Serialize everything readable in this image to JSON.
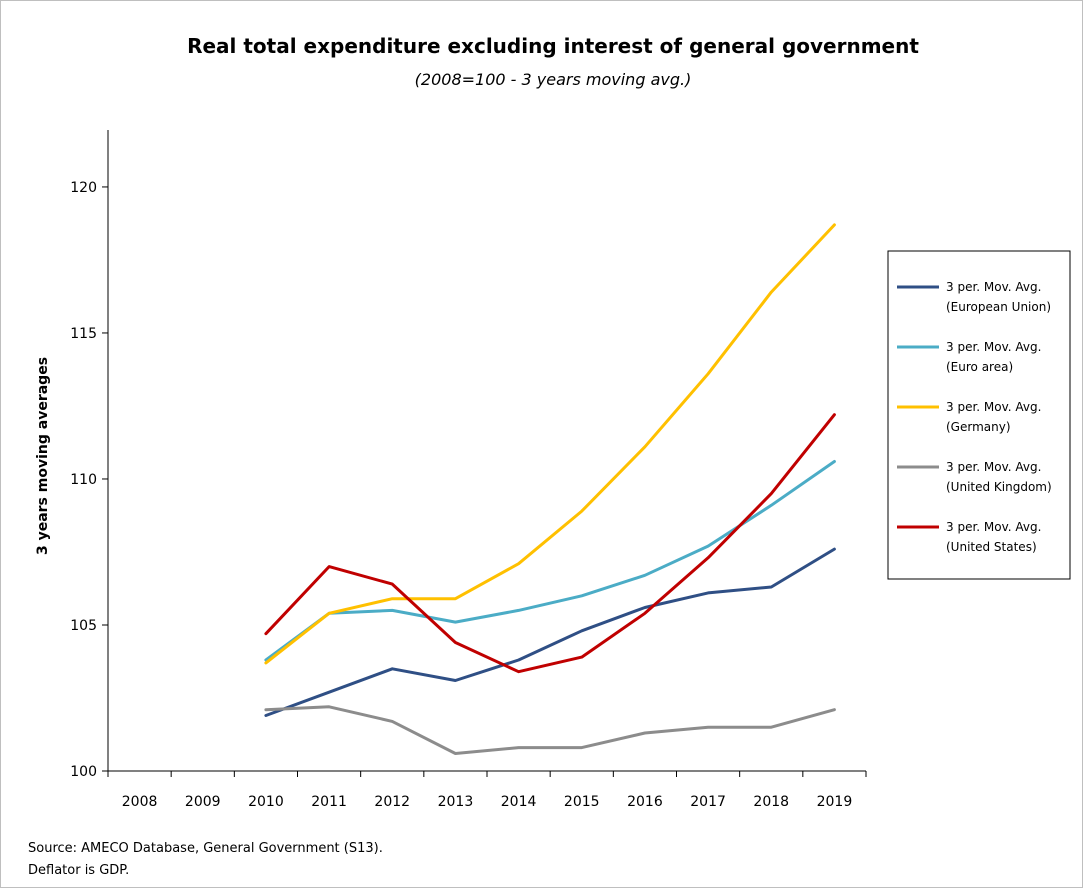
{
  "chart_data": {
    "type": "line",
    "title": "Real total expenditure excluding interest of general government",
    "subtitle": "(2008=100 - 3 years moving avg.)",
    "ylabel": "3 years moving averages",
    "xlabel": "",
    "categories": [
      "2008",
      "2009",
      "2010",
      "2011",
      "2012",
      "2013",
      "2014",
      "2015",
      "2016",
      "2017",
      "2018",
      "2019"
    ],
    "ylim": [
      100,
      120
    ],
    "yticks": [
      100,
      105,
      110,
      115,
      120
    ],
    "grid": false,
    "legend_position": "right",
    "series": [
      {
        "name": "3 per. Mov. Avg. (European Union)",
        "legend_lines": [
          "3 per. Mov. Avg.",
          "(European Union)"
        ],
        "color": "#2f4f85",
        "values": [
          null,
          null,
          101.9,
          102.7,
          103.5,
          103.1,
          103.8,
          104.8,
          105.6,
          106.1,
          106.3,
          107.6
        ]
      },
      {
        "name": "3 per. Mov. Avg. (Euro area)",
        "legend_lines": [
          "3 per. Mov. Avg.",
          "(Euro area)"
        ],
        "color": "#4bacc6",
        "values": [
          null,
          null,
          103.8,
          105.4,
          105.5,
          105.1,
          105.5,
          106.0,
          106.7,
          107.7,
          109.1,
          110.6
        ]
      },
      {
        "name": "3 per. Mov. Avg. (Germany)",
        "legend_lines": [
          "3 per. Mov. Avg.",
          "(Germany)"
        ],
        "color": "#ffc000",
        "values": [
          null,
          null,
          103.7,
          105.4,
          105.9,
          105.9,
          107.1,
          108.9,
          111.1,
          113.6,
          116.4,
          118.7
        ]
      },
      {
        "name": "3 per. Mov. Avg. (United Kingdom)",
        "legend_lines": [
          "3 per. Mov. Avg.",
          "(United Kingdom)"
        ],
        "color": "#8c8c8c",
        "values": [
          null,
          null,
          102.1,
          102.2,
          101.7,
          100.6,
          100.8,
          100.8,
          101.3,
          101.5,
          101.5,
          102.1
        ]
      },
      {
        "name": "3 per. Mov. Avg. (United States)",
        "legend_lines": [
          "3 per. Mov. Avg.",
          "(United States)"
        ],
        "color": "#c00000",
        "values": [
          null,
          null,
          104.7,
          107.0,
          106.4,
          104.4,
          103.4,
          103.9,
          105.4,
          107.3,
          109.5,
          112.2
        ]
      }
    ],
    "source_lines": [
      "Source: AMECO Database, General Government (S13).",
      "Deflator is GDP."
    ]
  }
}
